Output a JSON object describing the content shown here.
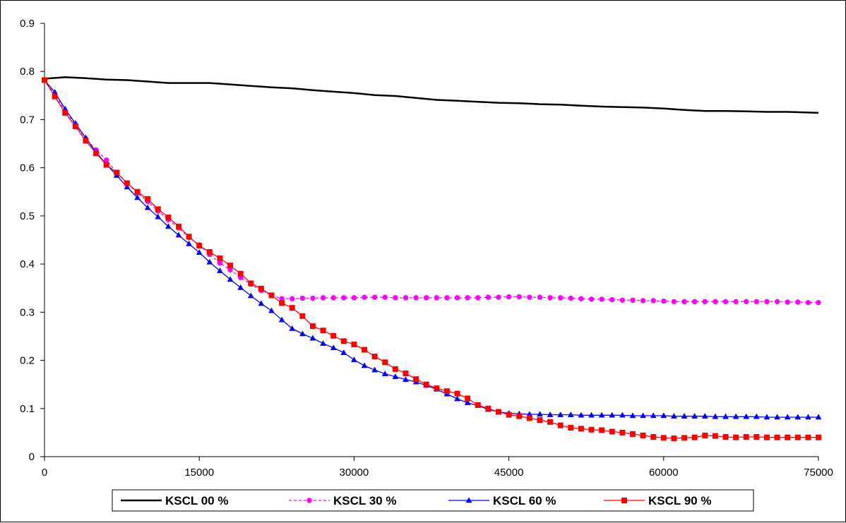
{
  "chart_data": {
    "type": "line",
    "title": "",
    "xlabel": "",
    "ylabel": "",
    "xlim": [
      0,
      75000
    ],
    "ylim": [
      0,
      0.9
    ],
    "x_ticks": [
      0,
      15000,
      30000,
      45000,
      60000,
      75000
    ],
    "y_ticks": [
      0,
      0.1,
      0.2,
      0.3,
      0.4,
      0.5,
      0.6,
      0.7,
      0.8,
      0.9
    ],
    "x_tick_labels": [
      "0",
      "15000",
      "30000",
      "45000",
      "60000",
      "75000"
    ],
    "y_tick_labels": [
      "0",
      "0.1",
      "0.2",
      "0.3",
      "0.4",
      "0.5",
      "0.6",
      "0.7",
      "0.8",
      "0.9"
    ],
    "grid": false,
    "legend_position": "bottom",
    "series": [
      {
        "name": "KSCL 00 %",
        "color": "#000000",
        "line_style": "solid",
        "marker": "none",
        "x": [
          0,
          2000,
          4000,
          6000,
          8000,
          10000,
          12000,
          14000,
          16000,
          18000,
          20000,
          22000,
          24000,
          26000,
          28000,
          30000,
          32000,
          34000,
          36000,
          38000,
          40000,
          42000,
          44000,
          46000,
          48000,
          50000,
          52000,
          54000,
          56000,
          58000,
          60000,
          62000,
          64000,
          66000,
          68000,
          70000,
          72000,
          75000
        ],
        "y": [
          0.785,
          0.788,
          0.786,
          0.783,
          0.782,
          0.779,
          0.776,
          0.776,
          0.776,
          0.773,
          0.77,
          0.767,
          0.765,
          0.761,
          0.758,
          0.755,
          0.751,
          0.749,
          0.745,
          0.741,
          0.739,
          0.737,
          0.735,
          0.734,
          0.732,
          0.731,
          0.729,
          0.727,
          0.726,
          0.725,
          0.723,
          0.72,
          0.718,
          0.718,
          0.717,
          0.716,
          0.716,
          0.714
        ]
      },
      {
        "name": "KSCL 30 %",
        "color": "#ff00ff",
        "line_style": "dashed",
        "marker": "circle",
        "x": [
          0,
          1000,
          2000,
          3000,
          4000,
          5000,
          6000,
          7000,
          8000,
          9000,
          10000,
          11000,
          12000,
          13000,
          14000,
          15000,
          16000,
          17000,
          18000,
          19000,
          20000,
          21000,
          22000,
          23000,
          24000,
          25000,
          26000,
          27000,
          28000,
          29000,
          30000,
          31000,
          32000,
          33000,
          34000,
          35000,
          36000,
          37000,
          38000,
          39000,
          40000,
          41000,
          42000,
          43000,
          44000,
          45000,
          46000,
          47000,
          48000,
          49000,
          50000,
          51000,
          52000,
          53000,
          54000,
          55000,
          56000,
          57000,
          58000,
          59000,
          60000,
          61000,
          62000,
          63000,
          64000,
          65000,
          66000,
          67000,
          68000,
          69000,
          70000,
          71000,
          72000,
          73000,
          74000,
          75000
        ],
        "y": [
          0.782,
          0.752,
          0.718,
          0.69,
          0.66,
          0.637,
          0.616,
          0.59,
          0.568,
          0.548,
          0.53,
          0.51,
          0.492,
          0.475,
          0.455,
          0.44,
          0.42,
          0.402,
          0.388,
          0.372,
          0.358,
          0.345,
          0.335,
          0.328,
          0.328,
          0.329,
          0.329,
          0.33,
          0.33,
          0.33,
          0.33,
          0.331,
          0.331,
          0.331,
          0.33,
          0.33,
          0.33,
          0.33,
          0.33,
          0.33,
          0.33,
          0.33,
          0.33,
          0.331,
          0.331,
          0.332,
          0.332,
          0.331,
          0.331,
          0.33,
          0.33,
          0.329,
          0.328,
          0.327,
          0.327,
          0.326,
          0.325,
          0.325,
          0.324,
          0.324,
          0.323,
          0.322,
          0.322,
          0.322,
          0.322,
          0.322,
          0.322,
          0.322,
          0.322,
          0.322,
          0.322,
          0.322,
          0.321,
          0.321,
          0.32,
          0.32
        ]
      },
      {
        "name": "KSCL 60 %",
        "color": "#0000ff",
        "line_style": "solid",
        "marker": "triangle",
        "x": [
          0,
          1000,
          2000,
          3000,
          4000,
          5000,
          6000,
          7000,
          8000,
          9000,
          10000,
          11000,
          12000,
          13000,
          14000,
          15000,
          16000,
          17000,
          18000,
          19000,
          20000,
          21000,
          22000,
          23000,
          24000,
          25000,
          26000,
          27000,
          28000,
          29000,
          30000,
          31000,
          32000,
          33000,
          34000,
          35000,
          36000,
          37000,
          38000,
          39000,
          40000,
          41000,
          42000,
          43000,
          44000,
          45000,
          46000,
          47000,
          48000,
          49000,
          50000,
          51000,
          52000,
          53000,
          54000,
          55000,
          56000,
          57000,
          58000,
          59000,
          60000,
          61000,
          62000,
          63000,
          64000,
          65000,
          66000,
          67000,
          68000,
          69000,
          70000,
          71000,
          72000,
          73000,
          74000,
          75000
        ],
        "y": [
          0.782,
          0.757,
          0.722,
          0.692,
          0.662,
          0.632,
          0.607,
          0.584,
          0.56,
          0.538,
          0.517,
          0.498,
          0.478,
          0.46,
          0.442,
          0.424,
          0.404,
          0.386,
          0.368,
          0.351,
          0.334,
          0.318,
          0.303,
          0.284,
          0.266,
          0.255,
          0.246,
          0.235,
          0.226,
          0.216,
          0.201,
          0.189,
          0.18,
          0.172,
          0.166,
          0.16,
          0.155,
          0.148,
          0.14,
          0.13,
          0.12,
          0.112,
          0.106,
          0.098,
          0.093,
          0.09,
          0.089,
          0.088,
          0.088,
          0.087,
          0.087,
          0.087,
          0.086,
          0.086,
          0.086,
          0.086,
          0.086,
          0.085,
          0.085,
          0.085,
          0.085,
          0.084,
          0.084,
          0.084,
          0.084,
          0.083,
          0.083,
          0.083,
          0.083,
          0.083,
          0.082,
          0.082,
          0.082,
          0.082,
          0.082,
          0.082
        ]
      },
      {
        "name": "KSCL 90 %",
        "color": "#ff0000",
        "line_style": "solid",
        "marker": "square",
        "x": [
          0,
          1000,
          2000,
          3000,
          4000,
          5000,
          6000,
          7000,
          8000,
          9000,
          10000,
          11000,
          12000,
          13000,
          14000,
          15000,
          16000,
          17000,
          18000,
          19000,
          20000,
          21000,
          22000,
          23000,
          24000,
          25000,
          26000,
          27000,
          28000,
          29000,
          30000,
          31000,
          32000,
          33000,
          34000,
          35000,
          36000,
          37000,
          38000,
          39000,
          40000,
          41000,
          42000,
          43000,
          44000,
          45000,
          46000,
          47000,
          48000,
          49000,
          50000,
          51000,
          52000,
          53000,
          54000,
          55000,
          56000,
          57000,
          58000,
          59000,
          60000,
          61000,
          62000,
          63000,
          64000,
          65000,
          66000,
          67000,
          68000,
          69000,
          70000,
          71000,
          72000,
          73000,
          74000,
          75000
        ],
        "y": [
          0.782,
          0.748,
          0.714,
          0.686,
          0.656,
          0.63,
          0.606,
          0.59,
          0.568,
          0.55,
          0.535,
          0.514,
          0.497,
          0.478,
          0.457,
          0.438,
          0.425,
          0.412,
          0.397,
          0.38,
          0.36,
          0.349,
          0.335,
          0.319,
          0.309,
          0.292,
          0.271,
          0.262,
          0.251,
          0.24,
          0.233,
          0.222,
          0.208,
          0.196,
          0.182,
          0.173,
          0.161,
          0.15,
          0.142,
          0.136,
          0.131,
          0.121,
          0.107,
          0.1,
          0.093,
          0.087,
          0.084,
          0.08,
          0.076,
          0.072,
          0.065,
          0.06,
          0.058,
          0.056,
          0.055,
          0.052,
          0.05,
          0.047,
          0.044,
          0.041,
          0.039,
          0.038,
          0.039,
          0.04,
          0.044,
          0.043,
          0.041,
          0.04,
          0.041,
          0.041,
          0.04,
          0.04,
          0.04,
          0.04,
          0.04,
          0.04
        ]
      }
    ]
  }
}
